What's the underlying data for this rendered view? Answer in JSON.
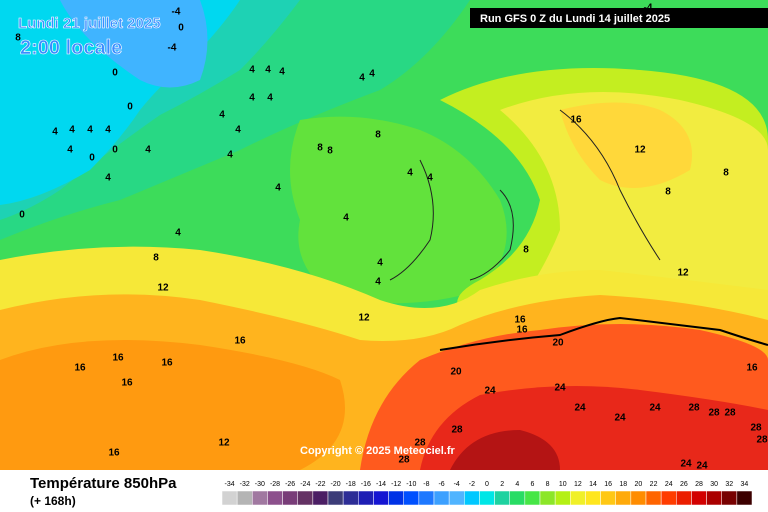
{
  "header": {
    "date": "Lundi 21 juillet 2025",
    "time": "2:00 locale",
    "run": "Run GFS 0 Z du Lundi 14 juillet 2025"
  },
  "footer": {
    "title": "Température 850hPa",
    "lead": "(+ 168h)",
    "copyright": "Copyright © 2025 Meteociel.fr"
  },
  "scale": {
    "values": [
      -34,
      -32,
      -30,
      -28,
      -26,
      -24,
      -22,
      -20,
      -18,
      -16,
      -14,
      -12,
      -10,
      -8,
      -6,
      -4,
      -2,
      0,
      2,
      4,
      6,
      8,
      10,
      12,
      14,
      16,
      18,
      20,
      22,
      24,
      26,
      28,
      30,
      32,
      34
    ],
    "colors": [
      "#d2d2d2",
      "#b4b4b4",
      "#a078a0",
      "#8c508c",
      "#783c78",
      "#643264",
      "#4b1e64",
      "#3c3c78",
      "#2d2d96",
      "#1e1eb4",
      "#1414d2",
      "#0032e6",
      "#0050ff",
      "#1e78ff",
      "#3ca0ff",
      "#50b4ff",
      "#00c8ff",
      "#00e6e6",
      "#1ed2a0",
      "#28dc64",
      "#46e646",
      "#8ce628",
      "#b4f014",
      "#f0f028",
      "#ffe61e",
      "#ffc814",
      "#ffaa0a",
      "#ff8c00",
      "#ff6400",
      "#ff3c00",
      "#eb1e00",
      "#d20000",
      "#aa0000",
      "#780000",
      "#3c0000"
    ]
  },
  "contour_labels": [
    0,
    0,
    4,
    4,
    4,
    4,
    4,
    4,
    4,
    4,
    4,
    4,
    4,
    4,
    4,
    4,
    0,
    0,
    4,
    4,
    4,
    4,
    4,
    4,
    8,
    8,
    8,
    4,
    4,
    4,
    4,
    8,
    16,
    12,
    8,
    8,
    12,
    8,
    12,
    12,
    16,
    16,
    16,
    16,
    16,
    16,
    12,
    16,
    16,
    20,
    20,
    24,
    24,
    24,
    24,
    24,
    28,
    28,
    28,
    16,
    28,
    28,
    28,
    28,
    28,
    24,
    24,
    0,
    -4,
    -4,
    0,
    -4,
    8
  ]
}
